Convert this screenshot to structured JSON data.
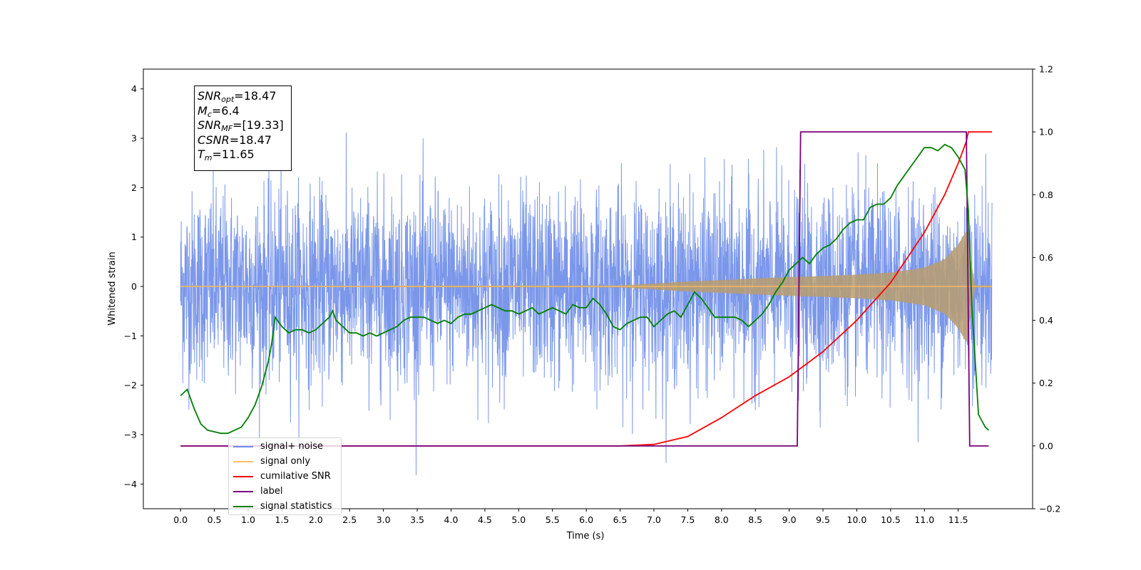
{
  "chart_data": {
    "type": "line",
    "xlabel": "Time (s)",
    "ylabel": "Whitened strain",
    "xlim": [
      -0.55,
      12.6
    ],
    "ylim": [
      -4.5,
      4.4
    ],
    "y2lim": [
      -0.2,
      1.2
    ],
    "x_ticks": [
      "0.0",
      "0.5",
      "1.0",
      "1.5",
      "2.0",
      "2.5",
      "3.0",
      "3.5",
      "4.0",
      "4.5",
      "5.0",
      "5.5",
      "6.0",
      "6.5",
      "7.0",
      "7.5",
      "8.0",
      "8.5",
      "9.0",
      "9.5",
      "10.0",
      "10.5",
      "11.0",
      "11.5"
    ],
    "y_ticks": [
      "4",
      "3",
      "2",
      "1",
      "0",
      "−1",
      "−2",
      "−3",
      "−4"
    ],
    "y2_ticks": [
      "1.2",
      "1.0",
      "0.8",
      "0.6",
      "0.4",
      "0.2",
      "0.0",
      "−0.2"
    ],
    "legend_position": "lower left",
    "annotation": {
      "snr_opt": {
        "symbol": "SNR",
        "sub": "opt",
        "value": "=18.47"
      },
      "mc": {
        "symbol": "M",
        "sub": "c",
        "value": "=6.4"
      },
      "snr_mf": {
        "symbol": "SNR",
        "sub": "MF",
        "value": "=[19.33]"
      },
      "csnr": {
        "symbol": "CSNR",
        "sub": "",
        "value": "=18.47"
      },
      "tm": {
        "symbol": "T",
        "sub": "m",
        "value": "=11.65"
      }
    },
    "series": [
      {
        "name": "signal+ noise",
        "axis": "left",
        "color": "#6d8ce8",
        "description": "whitened noise with std ≈ 1, peaks near ±4"
      },
      {
        "name": "signal only",
        "axis": "left",
        "color": "#ffbf5e",
        "envelope": {
          "x": [
            0,
            6.5,
            7.5,
            8.5,
            9.0,
            9.5,
            10.0,
            10.5,
            11.0,
            11.3,
            11.5,
            11.63,
            11.68,
            11.75,
            12.0
          ],
          "amp": [
            0.01,
            0.02,
            0.1,
            0.16,
            0.19,
            0.21,
            0.24,
            0.28,
            0.38,
            0.55,
            0.85,
            1.15,
            0.6,
            0.02,
            0.02
          ]
        }
      },
      {
        "name": "cumilative SNR",
        "axis": "right",
        "color": "#ff0000",
        "x": [
          0,
          6.5,
          7.0,
          7.5,
          8.0,
          8.5,
          9.0,
          9.5,
          10.0,
          10.5,
          11.0,
          11.3,
          11.5,
          11.62,
          11.65,
          12.0
        ],
        "y": [
          0,
          0.0,
          0.005,
          0.03,
          0.09,
          0.16,
          0.22,
          0.3,
          0.4,
          0.52,
          0.68,
          0.8,
          0.9,
          0.97,
          1.0,
          1.0
        ]
      },
      {
        "name": "label",
        "axis": "right",
        "color": "#7b007b",
        "x": [
          0,
          9.12,
          9.17,
          11.62,
          11.67,
          11.95
        ],
        "y": [
          0,
          0,
          1,
          1,
          0,
          0
        ]
      },
      {
        "name": "signal only",
        "axis": "right",
        "color": "#7b007b",
        "hidden": true
      },
      {
        "name": "signal statistics",
        "axis": "right",
        "color": "#008000",
        "x": [
          0,
          0.1,
          0.2,
          0.3,
          0.4,
          0.5,
          0.6,
          0.7,
          0.8,
          0.9,
          1.0,
          1.1,
          1.2,
          1.3,
          1.35,
          1.4,
          1.5,
          1.6,
          1.7,
          1.8,
          1.9,
          2.0,
          2.1,
          2.2,
          2.25,
          2.3,
          2.4,
          2.5,
          2.6,
          2.7,
          2.8,
          2.9,
          3.0,
          3.1,
          3.2,
          3.3,
          3.4,
          3.5,
          3.6,
          3.7,
          3.8,
          3.9,
          4.0,
          4.1,
          4.2,
          4.3,
          4.4,
          4.5,
          4.6,
          4.7,
          4.8,
          4.9,
          5.0,
          5.1,
          5.2,
          5.3,
          5.4,
          5.5,
          5.6,
          5.7,
          5.8,
          5.9,
          6.0,
          6.1,
          6.2,
          6.3,
          6.4,
          6.5,
          6.6,
          6.7,
          6.8,
          6.9,
          7.0,
          7.1,
          7.2,
          7.3,
          7.4,
          7.5,
          7.6,
          7.7,
          7.8,
          7.9,
          8.0,
          8.1,
          8.2,
          8.3,
          8.4,
          8.5,
          8.6,
          8.7,
          8.8,
          8.9,
          9.0,
          9.1,
          9.2,
          9.3,
          9.4,
          9.5,
          9.6,
          9.7,
          9.8,
          9.9,
          10.0,
          10.1,
          10.2,
          10.3,
          10.4,
          10.5,
          10.6,
          10.7,
          10.8,
          10.9,
          11.0,
          11.1,
          11.2,
          11.3,
          11.4,
          11.5,
          11.6,
          11.65,
          11.7,
          11.8,
          11.9,
          11.95
        ],
        "y": [
          0.16,
          0.18,
          0.12,
          0.07,
          0.05,
          0.045,
          0.04,
          0.04,
          0.05,
          0.06,
          0.09,
          0.13,
          0.19,
          0.27,
          0.33,
          0.41,
          0.38,
          0.36,
          0.37,
          0.37,
          0.36,
          0.37,
          0.39,
          0.41,
          0.43,
          0.4,
          0.38,
          0.36,
          0.36,
          0.35,
          0.36,
          0.35,
          0.36,
          0.37,
          0.38,
          0.4,
          0.41,
          0.41,
          0.41,
          0.4,
          0.39,
          0.4,
          0.39,
          0.41,
          0.42,
          0.42,
          0.43,
          0.44,
          0.45,
          0.44,
          0.43,
          0.43,
          0.42,
          0.43,
          0.44,
          0.42,
          0.43,
          0.44,
          0.43,
          0.42,
          0.45,
          0.44,
          0.44,
          0.47,
          0.45,
          0.42,
          0.38,
          0.37,
          0.39,
          0.4,
          0.41,
          0.41,
          0.38,
          0.4,
          0.42,
          0.43,
          0.41,
          0.45,
          0.49,
          0.47,
          0.44,
          0.41,
          0.41,
          0.41,
          0.41,
          0.4,
          0.38,
          0.4,
          0.42,
          0.45,
          0.49,
          0.52,
          0.56,
          0.58,
          0.6,
          0.58,
          0.61,
          0.63,
          0.64,
          0.66,
          0.69,
          0.71,
          0.72,
          0.72,
          0.76,
          0.77,
          0.77,
          0.79,
          0.83,
          0.86,
          0.89,
          0.92,
          0.95,
          0.95,
          0.94,
          0.96,
          0.95,
          0.92,
          0.88,
          0.75,
          0.45,
          0.1,
          0.06,
          0.05
        ]
      }
    ]
  }
}
